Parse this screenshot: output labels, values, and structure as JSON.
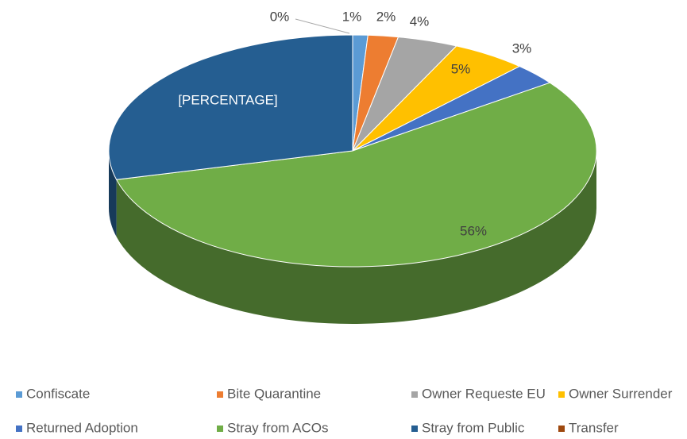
{
  "chart_data": {
    "type": "pie",
    "categories": [
      "Confiscate",
      "Bite Quarantine",
      "Owner Requeste EU",
      "Owner Surrender",
      "Returned Adoption",
      "Stray from ACOs",
      "Stray from Public",
      "Transfer"
    ],
    "values": [
      1,
      2,
      4,
      5,
      3,
      56,
      29,
      0
    ],
    "value_labels": [
      "1%",
      "2%",
      "4%",
      "5%",
      "3%",
      "56%",
      "[PERCENTAGE]",
      "0%"
    ],
    "colors": [
      "#5B9BD5",
      "#ED7D31",
      "#A5A5A5",
      "#FFC000",
      "#4472C4",
      "#70AD47",
      "#255E91",
      "#9E480E"
    ],
    "legend": "bottom"
  }
}
